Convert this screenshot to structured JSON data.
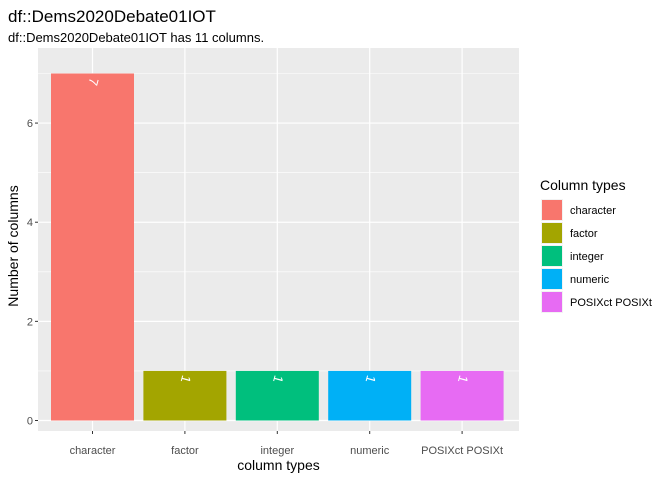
{
  "chart_data": {
    "type": "bar",
    "title": "df::Dems2020Debate01IOT",
    "subtitle": "df::Dems2020Debate01IOT has 11 columns.",
    "xlabel": "column types",
    "ylabel": "Number of columns",
    "categories": [
      "character",
      "factor",
      "integer",
      "numeric",
      "POSIXct POSIXt"
    ],
    "values": [
      7,
      1,
      1,
      1,
      1
    ],
    "data_labels": [
      "7",
      "1",
      "1",
      "1",
      "1"
    ],
    "colors": [
      "#F8766D",
      "#A3A500",
      "#00BF7D",
      "#00B0F6",
      "#E76BF3"
    ],
    "y_ticks": [
      0,
      2,
      4,
      6
    ],
    "y_tick_labels": [
      "0",
      "2",
      "4",
      "6"
    ],
    "ylim": [
      0,
      7.35
    ],
    "grid": true,
    "legend": {
      "title": "Column types",
      "position": "right",
      "entries": [
        "character",
        "factor",
        "integer",
        "numeric",
        "POSIXct POSIXt"
      ]
    }
  }
}
